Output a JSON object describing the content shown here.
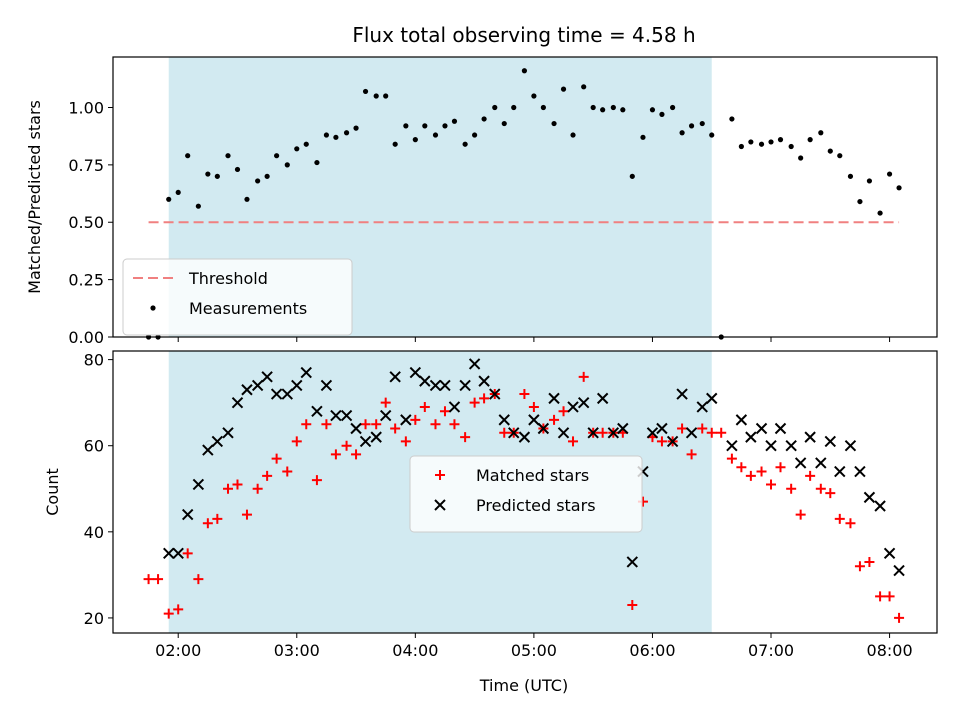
{
  "chart_data": {
    "title": "Flux total observing time = 4.58 h",
    "xlabel": "Time (UTC)",
    "x_ticks": [
      "02:00",
      "03:00",
      "04:00",
      "05:00",
      "06:00",
      "07:00",
      "08:00"
    ],
    "x_range_hours": [
      1.45,
      8.4
    ],
    "shaded_interval_hours": [
      1.92,
      6.5
    ],
    "shaded_color": "#add8e6",
    "panels": [
      {
        "id": "ratio",
        "type": "scatter",
        "ylabel": "Matched/Predicted stars",
        "ylim": [
          0,
          1.22
        ],
        "y_ticks": [
          "0.00",
          "0.25",
          "0.50",
          "0.75",
          "1.00"
        ],
        "y_tick_values": [
          0,
          0.25,
          0.5,
          0.75,
          1.0
        ],
        "legend_position": "lower-left",
        "threshold": {
          "name": "Threshold",
          "value": 0.5,
          "x_range": [
            1.75,
            8.08
          ],
          "color": "#f08080"
        },
        "series": [
          {
            "name": "Measurements",
            "marker": "dot",
            "color": "#000000",
            "x": [
              1.75,
              1.83,
              1.92,
              2.0,
              2.08,
              2.17,
              2.25,
              2.33,
              2.42,
              2.5,
              2.58,
              2.67,
              2.75,
              2.83,
              2.92,
              3.0,
              3.08,
              3.17,
              3.25,
              3.33,
              3.42,
              3.5,
              3.58,
              3.67,
              3.75,
              3.83,
              3.92,
              4.0,
              4.08,
              4.17,
              4.25,
              4.33,
              4.42,
              4.5,
              4.58,
              4.67,
              4.75,
              4.83,
              4.92,
              5.0,
              5.08,
              5.17,
              5.25,
              5.33,
              5.42,
              5.5,
              5.58,
              5.67,
              5.75,
              5.83,
              5.92,
              6.0,
              6.08,
              6.17,
              6.25,
              6.33,
              6.42,
              6.5,
              6.58,
              6.67,
              6.75,
              6.83,
              6.92,
              7.0,
              7.08,
              7.17,
              7.25,
              7.33,
              7.42,
              7.5,
              7.58,
              7.67,
              7.75,
              7.83,
              7.92,
              8.0,
              8.08
            ],
            "y": [
              0.0,
              0.0,
              0.6,
              0.63,
              0.79,
              0.57,
              0.71,
              0.7,
              0.79,
              0.73,
              0.6,
              0.68,
              0.7,
              0.79,
              0.75,
              0.82,
              0.84,
              0.76,
              0.88,
              0.87,
              0.89,
              0.91,
              1.07,
              1.05,
              1.05,
              0.84,
              0.92,
              0.86,
              0.92,
              0.88,
              0.92,
              0.94,
              0.84,
              0.88,
              0.95,
              1.0,
              0.93,
              1.0,
              1.16,
              1.05,
              1.0,
              0.93,
              1.08,
              0.88,
              1.09,
              1.0,
              0.99,
              1.0,
              0.99,
              0.7,
              0.87,
              0.99,
              0.97,
              1.0,
              0.89,
              0.92,
              0.93,
              0.88,
              0.0,
              0.95,
              0.83,
              0.85,
              0.84,
              0.85,
              0.86,
              0.83,
              0.78,
              0.86,
              0.89,
              0.81,
              0.79,
              0.7,
              0.59,
              0.68,
              0.54,
              0.71,
              0.65
            ]
          }
        ]
      },
      {
        "id": "counts",
        "type": "scatter",
        "ylabel": "Count",
        "ylim": [
          16.5,
          82
        ],
        "y_ticks": [
          "20",
          "40",
          "60",
          "80"
        ],
        "y_tick_values": [
          20,
          40,
          60,
          80
        ],
        "legend_position": "center",
        "series": [
          {
            "name": "Matched stars",
            "marker": "plus",
            "color": "#ff0000",
            "x": [
              1.75,
              1.83,
              1.92,
              2.0,
              2.08,
              2.17,
              2.25,
              2.33,
              2.42,
              2.5,
              2.58,
              2.67,
              2.75,
              2.83,
              2.92,
              3.0,
              3.08,
              3.17,
              3.25,
              3.33,
              3.42,
              3.5,
              3.58,
              3.67,
              3.75,
              3.83,
              3.92,
              4.0,
              4.08,
              4.17,
              4.25,
              4.33,
              4.42,
              4.5,
              4.58,
              4.67,
              4.75,
              4.83,
              4.92,
              5.0,
              5.08,
              5.17,
              5.25,
              5.33,
              5.42,
              5.5,
              5.58,
              5.67,
              5.75,
              5.83,
              5.92,
              6.0,
              6.08,
              6.17,
              6.25,
              6.33,
              6.42,
              6.5,
              6.58,
              6.67,
              6.75,
              6.83,
              6.92,
              7.0,
              7.08,
              7.17,
              7.25,
              7.33,
              7.42,
              7.5,
              7.58,
              7.67,
              7.75,
              7.83,
              7.92,
              8.0,
              8.08
            ],
            "y": [
              29,
              29,
              21,
              22,
              35,
              29,
              42,
              43,
              50,
              51,
              44,
              50,
              53,
              57,
              54,
              61,
              65,
              52,
              65,
              58,
              60,
              58,
              65,
              65,
              70,
              64,
              61,
              66,
              69,
              65,
              68,
              65,
              62,
              70,
              71,
              72,
              63,
              63,
              72,
              69,
              64,
              66,
              68,
              61,
              76,
              63,
              63,
              63,
              63,
              23,
              47,
              62,
              61,
              61,
              64,
              58,
              64,
              63,
              63,
              57,
              55,
              53,
              54,
              51,
              55,
              50,
              44,
              53,
              50,
              49,
              43,
              42,
              32,
              33,
              25,
              25,
              20
            ]
          },
          {
            "name": "Predicted stars",
            "marker": "x",
            "color": "#000000",
            "x": [
              1.92,
              2.0,
              2.08,
              2.17,
              2.25,
              2.33,
              2.42,
              2.5,
              2.58,
              2.67,
              2.75,
              2.83,
              2.92,
              3.0,
              3.08,
              3.17,
              3.25,
              3.33,
              3.42,
              3.5,
              3.58,
              3.67,
              3.75,
              3.83,
              3.92,
              4.0,
              4.08,
              4.17,
              4.25,
              4.33,
              4.42,
              4.5,
              4.58,
              4.67,
              4.75,
              4.83,
              4.92,
              5.0,
              5.08,
              5.17,
              5.25,
              5.33,
              5.42,
              5.5,
              5.58,
              5.67,
              5.75,
              5.83,
              5.92,
              6.0,
              6.08,
              6.17,
              6.25,
              6.33,
              6.42,
              6.5,
              6.67,
              6.75,
              6.83,
              6.92,
              7.0,
              7.08,
              7.17,
              7.25,
              7.33,
              7.42,
              7.5,
              7.58,
              7.67,
              7.75,
              7.83,
              7.92,
              8.0,
              8.08
            ],
            "y": [
              35,
              35,
              44,
              51,
              59,
              61,
              63,
              70,
              73,
              74,
              76,
              72,
              72,
              74,
              77,
              68,
              74,
              67,
              67,
              64,
              61,
              62,
              67,
              76,
              66,
              77,
              75,
              74,
              74,
              69,
              74,
              79,
              75,
              72,
              66,
              63,
              62,
              66,
              64,
              71,
              63,
              69,
              70,
              63,
              71,
              63,
              64,
              33,
              54,
              63,
              64,
              61,
              72,
              63,
              69,
              71,
              60,
              66,
              62,
              64,
              60,
              64,
              60,
              56,
              62,
              56,
              61,
              54,
              60,
              54,
              48,
              46,
              35,
              31
            ]
          }
        ]
      }
    ]
  }
}
